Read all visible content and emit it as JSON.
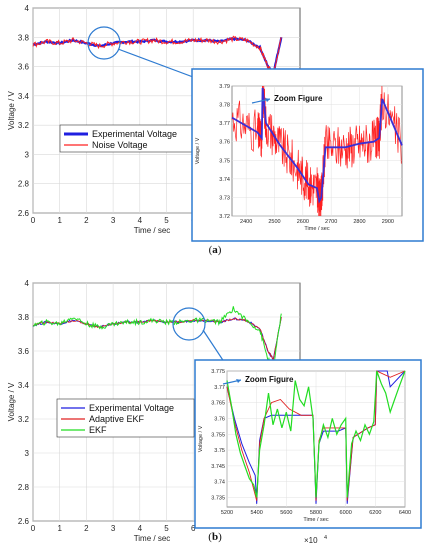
{
  "chart_data": [
    {
      "type": "line",
      "panel_caption_open": "(",
      "panel_caption_letter": "a",
      "panel_caption_close": ")",
      "xlabel": "Time / sec",
      "ylabel": "Voltage / V",
      "x_multiplier": "×10",
      "x_exponent": "4",
      "xlim": [
        0,
        10
      ],
      "ylim": [
        2.6,
        4.0
      ],
      "xticks": [
        "0",
        "1",
        "2",
        "3",
        "4",
        "5",
        "6"
      ],
      "yticks": [
        "2.6",
        "2.8",
        "3",
        "3.2",
        "3.4",
        "3.6",
        "3.8",
        "4"
      ],
      "grid": true,
      "legend_position": "bottom-left",
      "series": [
        {
          "name": "Experimental Voltage",
          "color": "#1f1fe0",
          "x": [
            0,
            0.5,
            1,
            1.5,
            2,
            2.5,
            3,
            3.5,
            4,
            4.5,
            5,
            5.5,
            6,
            6.5,
            7,
            7.5,
            8,
            8.5,
            8.8,
            9.0,
            9.3
          ],
          "y": [
            3.75,
            3.77,
            3.76,
            3.78,
            3.76,
            3.74,
            3.76,
            3.77,
            3.77,
            3.78,
            3.77,
            3.77,
            3.78,
            3.78,
            3.77,
            3.79,
            3.78,
            3.73,
            3.6,
            3.55,
            3.8
          ]
        },
        {
          "name": "Noise Voltage",
          "color": "#ff2020",
          "x": [
            0,
            0.5,
            1,
            1.5,
            2,
            2.5,
            3,
            3.5,
            4,
            4.5,
            5,
            5.5,
            6,
            6.5,
            7,
            7.5,
            8,
            8.5,
            8.8,
            9.0,
            9.3
          ],
          "y": [
            3.75,
            3.77,
            3.76,
            3.78,
            3.76,
            3.74,
            3.76,
            3.77,
            3.77,
            3.78,
            3.77,
            3.77,
            3.78,
            3.78,
            3.77,
            3.79,
            3.78,
            3.73,
            3.6,
            3.55,
            3.8
          ]
        }
      ],
      "annotation_label": "Zoom Figure",
      "inset": {
        "xlabel": "Time / sec",
        "ylabel": "Voltage / V",
        "xlim": [
          2350,
          2950
        ],
        "ylim": [
          3.72,
          3.79
        ],
        "xticks": [
          "2400",
          "2500",
          "2600",
          "2700",
          "2800",
          "2900"
        ],
        "yticks": [
          "3.72",
          "3.73",
          "3.74",
          "3.75",
          "3.76",
          "3.77",
          "3.78",
          "3.79"
        ],
        "series": [
          {
            "name": "Experimental Voltage",
            "x": [
              2350,
              2440,
              2455,
              2458,
              2470,
              2520,
              2580,
              2620,
              2650,
              2658,
              2665,
              2680,
              2750,
              2800,
              2850,
              2870,
              2880,
              2950
            ],
            "y": [
              3.773,
              3.765,
              3.762,
              3.789,
              3.77,
              3.758,
              3.746,
              3.737,
              3.735,
              3.728,
              3.73,
              3.757,
              3.757,
              3.759,
              3.76,
              3.762,
              3.783,
              3.758
            ]
          }
        ]
      }
    },
    {
      "type": "line",
      "panel_caption_open": "(",
      "panel_caption_letter": "b",
      "panel_caption_close": ")",
      "xlabel": "Time / sec",
      "ylabel": "Voltage / V",
      "x_multiplier": "×10",
      "x_exponent": "4",
      "xlim": [
        0,
        10
      ],
      "ylim": [
        2.6,
        4.0
      ],
      "xticks": [
        "0",
        "1",
        "2",
        "3",
        "4",
        "5",
        "6"
      ],
      "yticks": [
        "2.6",
        "2.8",
        "3",
        "3.2",
        "3.4",
        "3.6",
        "3.8",
        "4"
      ],
      "grid": true,
      "legend_position": "bottom-left",
      "series": [
        {
          "name": "Experimental Voltage",
          "color": "#1f1fe0",
          "x": [
            0,
            0.5,
            1,
            1.5,
            2,
            2.5,
            3,
            3.5,
            4,
            4.5,
            5,
            5.5,
            6,
            6.5,
            7,
            7.5,
            8,
            8.5,
            8.8,
            9.0,
            9.3
          ],
          "y": [
            3.75,
            3.77,
            3.76,
            3.78,
            3.76,
            3.74,
            3.76,
            3.77,
            3.77,
            3.78,
            3.77,
            3.77,
            3.78,
            3.78,
            3.77,
            3.79,
            3.78,
            3.73,
            3.6,
            3.55,
            3.8
          ]
        },
        {
          "name": "Adaptive EKF",
          "color": "#e02020",
          "x": [
            0,
            0.5,
            1,
            1.5,
            2,
            2.5,
            3,
            3.5,
            4,
            4.5,
            5,
            5.5,
            6,
            6.5,
            7,
            7.5,
            8,
            8.5,
            8.8,
            9.0,
            9.3
          ],
          "y": [
            3.75,
            3.77,
            3.76,
            3.78,
            3.76,
            3.74,
            3.76,
            3.77,
            3.77,
            3.78,
            3.77,
            3.77,
            3.78,
            3.78,
            3.77,
            3.79,
            3.78,
            3.73,
            3.6,
            3.55,
            3.8
          ]
        },
        {
          "name": "EKF",
          "color": "#22dd22",
          "x": [
            0,
            0.5,
            1,
            1.5,
            2,
            2.5,
            3,
            3.5,
            4,
            4.5,
            5,
            5.5,
            6,
            6.5,
            7,
            7.5,
            8,
            8.5,
            8.8,
            9.0,
            9.3
          ],
          "y": [
            3.75,
            3.77,
            3.76,
            3.8,
            3.76,
            3.74,
            3.76,
            3.77,
            3.77,
            3.78,
            3.77,
            3.77,
            3.78,
            3.78,
            3.77,
            3.85,
            3.78,
            3.72,
            3.55,
            3.5,
            3.82
          ]
        }
      ],
      "annotation_label": "Zoom Figure",
      "inset": {
        "xlabel": "Time / sec",
        "ylabel": "Voltage / V",
        "xlim": [
          5200,
          6400
        ],
        "ylim": [
          3.732,
          3.775
        ],
        "xticks": [
          "5200",
          "5400",
          "5600",
          "5800",
          "6000",
          "6200",
          "6400"
        ],
        "yticks": [
          "3.735",
          "3.74",
          "3.745",
          "3.75",
          "3.755",
          "3.76",
          "3.765",
          "3.77",
          "3.775"
        ],
        "series": [
          {
            "name": "Experimental Voltage",
            "x": [
              5200,
              5250,
              5300,
              5350,
              5390,
              5400,
              5420,
              5450,
              5500,
              5600,
              5700,
              5780,
              5800,
              5820,
              5850,
              5950,
              6000,
              6010,
              6050,
              6150,
              6200,
              6210,
              6280,
              6300,
              6400
            ],
            "y": [
              3.77,
              3.76,
              3.752,
              3.746,
              3.742,
              3.733,
              3.753,
              3.76,
              3.761,
              3.761,
              3.761,
              3.761,
              3.733,
              3.752,
              3.756,
              3.756,
              3.757,
              3.733,
              3.754,
              3.757,
              3.758,
              3.775,
              3.775,
              3.77,
              3.775
            ]
          },
          {
            "name": "Adaptive EKF",
            "x": [
              5200,
              5250,
              5300,
              5350,
              5400,
              5420,
              5450,
              5500,
              5560,
              5620,
              5700,
              5780,
              5800,
              5820,
              5850,
              5950,
              6000,
              6010,
              6050,
              6150,
              6200,
              6210,
              6300,
              6400
            ],
            "y": [
              3.77,
              3.759,
              3.75,
              3.743,
              3.734,
              3.752,
              3.76,
              3.765,
              3.766,
              3.763,
              3.761,
              3.761,
              3.734,
              3.753,
              3.757,
              3.757,
              3.757,
              3.734,
              3.754,
              3.757,
              3.758,
              3.775,
              3.773,
              3.775
            ]
          },
          {
            "name": "EKF",
            "x": [
              5200,
              5230,
              5260,
              5290,
              5320,
              5350,
              5380,
              5400,
              5420,
              5450,
              5480,
              5510,
              5540,
              5570,
              5600,
              5630,
              5660,
              5690,
              5720,
              5750,
              5780,
              5800,
              5820,
              5850,
              5880,
              5910,
              5940,
              5970,
              6000,
              6010,
              6040,
              6070,
              6100,
              6130,
              6160,
              6190,
              6210,
              6240,
              6270,
              6300,
              6330,
              6360,
              6400
            ],
            "y": [
              3.772,
              3.764,
              3.755,
              3.749,
              3.745,
              3.741,
              3.739,
              3.735,
              3.75,
              3.758,
              3.768,
              3.758,
              3.763,
              3.757,
              3.762,
              3.756,
              3.772,
              3.766,
              3.764,
              3.77,
              3.76,
              3.735,
              3.752,
              3.758,
              3.754,
              3.76,
              3.755,
              3.758,
              3.76,
              3.735,
              3.752,
              3.756,
              3.753,
              3.758,
              3.755,
              3.759,
              3.775,
              3.771,
              3.768,
              3.762,
              3.766,
              3.77,
              3.775
            ]
          }
        ]
      }
    }
  ]
}
